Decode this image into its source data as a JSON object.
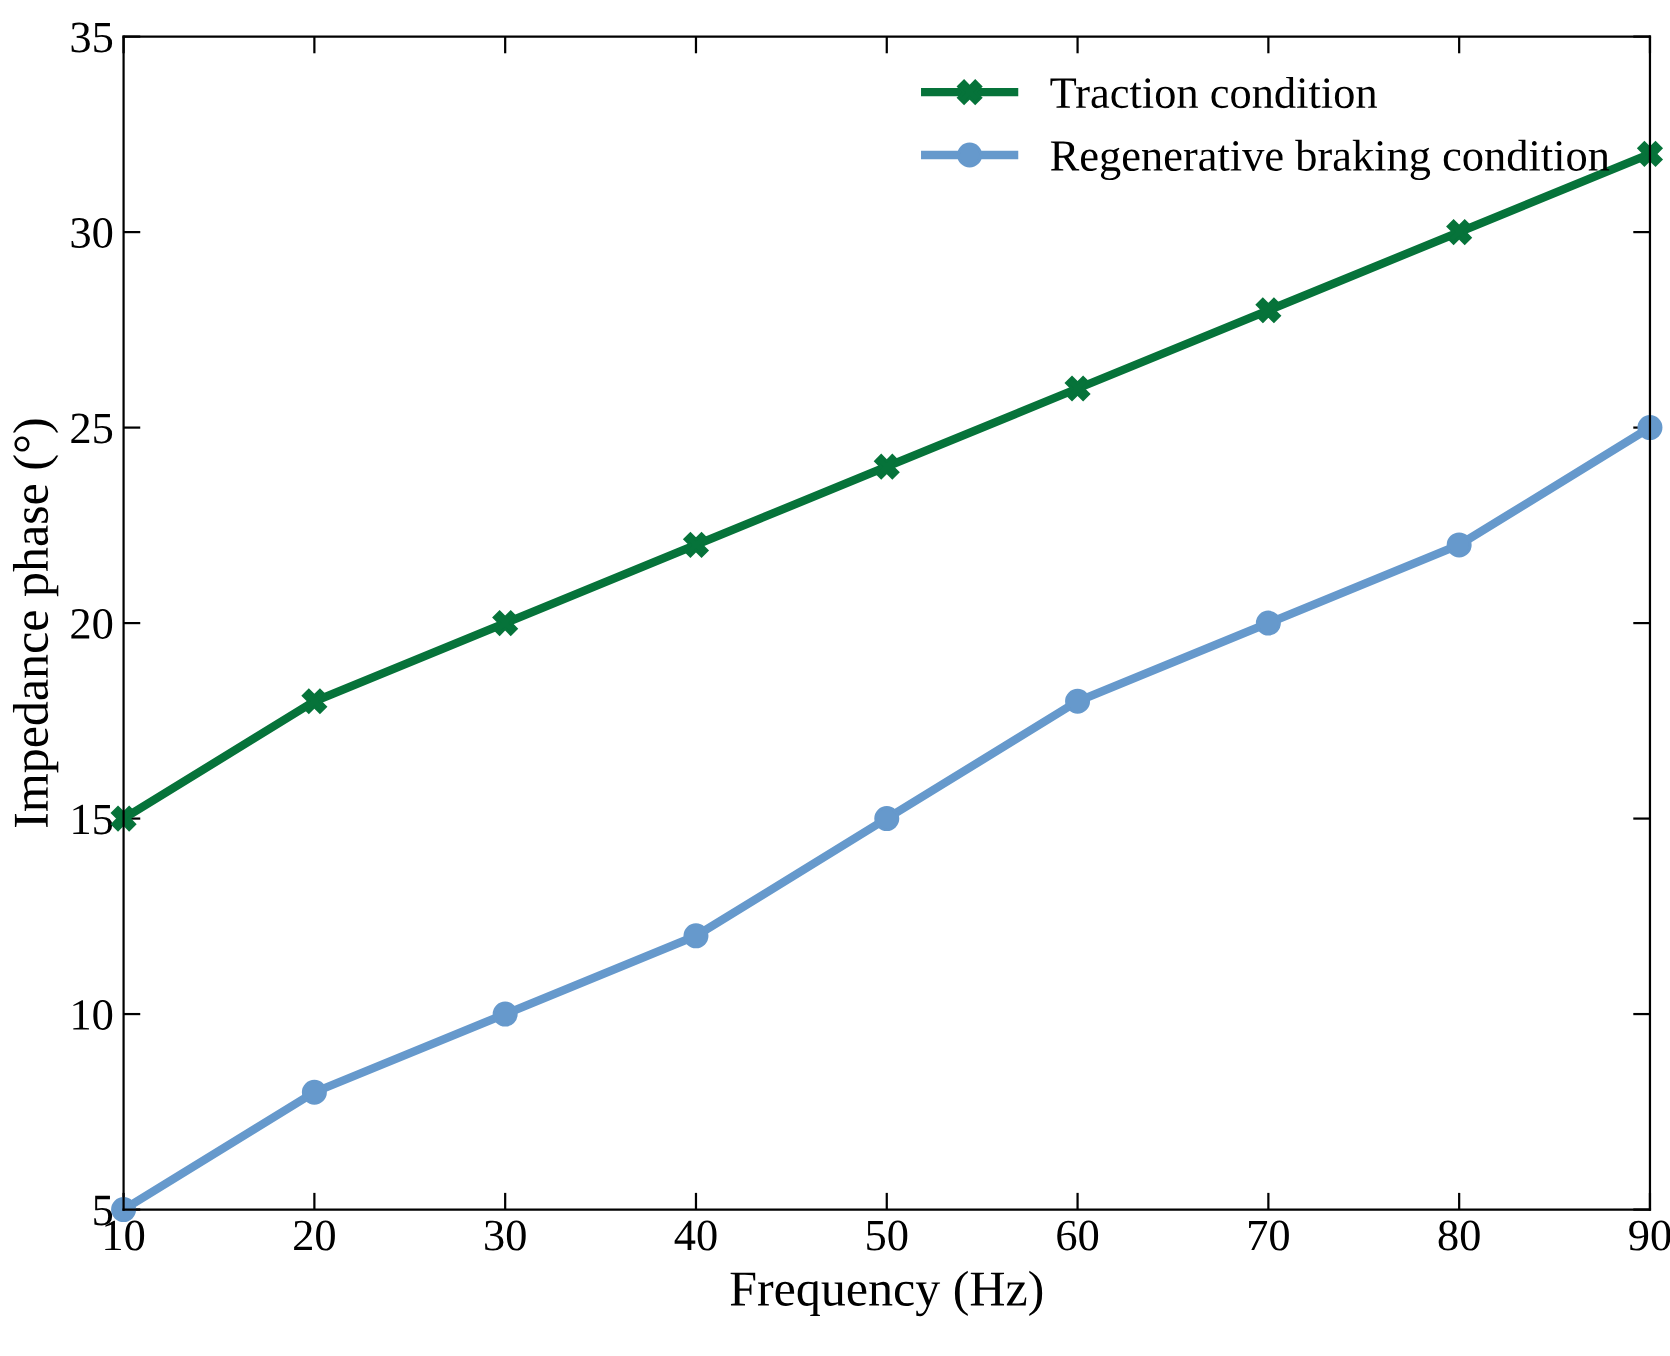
{
  "chart_data": {
    "type": "line",
    "xlabel": "Frequency (Hz)",
    "ylabel": "Impedance phase (°)",
    "x": [
      10,
      20,
      30,
      40,
      50,
      60,
      70,
      80,
      90
    ],
    "series": [
      {
        "name": "Traction condition",
        "color": "#06733a",
        "marker": "cross",
        "values": [
          15,
          18,
          20,
          22,
          24,
          26,
          28,
          30,
          32
        ]
      },
      {
        "name": "Regenerative braking condition",
        "color": "#6699cc",
        "marker": "circle",
        "values": [
          5,
          8,
          10,
          12,
          15,
          18,
          20,
          22,
          25
        ]
      }
    ],
    "xlim": [
      10,
      90
    ],
    "xticks": [
      10,
      20,
      30,
      40,
      50,
      60,
      70,
      80,
      90
    ],
    "ylim": [
      5,
      35
    ],
    "yticks": [
      5,
      10,
      15,
      20,
      25,
      30,
      35
    ],
    "grid": false,
    "legend": "top right",
    "line_style": "solid"
  }
}
